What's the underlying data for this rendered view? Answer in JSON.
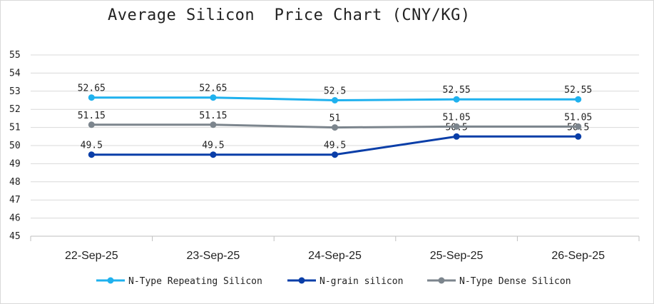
{
  "chart_data": {
    "type": "line",
    "title": "Average Silicon  Price Chart (CNY/KG)",
    "categories": [
      "22-Sep-25",
      "23-Sep-25",
      "24-Sep-25",
      "25-Sep-25",
      "26-Sep-25"
    ],
    "ylim": [
      45,
      55
    ],
    "yticks": [
      45,
      46,
      47,
      48,
      49,
      50,
      51,
      52,
      53,
      54,
      55
    ],
    "grid": true,
    "legend_position": "bottom",
    "series": [
      {
        "name": "N-Type Repeating Silicon",
        "color": "#1fb1ee",
        "values": [
          52.65,
          52.65,
          52.5,
          52.55,
          52.55
        ],
        "labels": [
          "52.65",
          "52.65",
          "52.5",
          "52.55",
          "52.55"
        ]
      },
      {
        "name": "N-grain silicon",
        "color": "#0a3ea8",
        "values": [
          49.5,
          49.5,
          49.5,
          50.5,
          50.5
        ],
        "labels": [
          "49.5",
          "49.5",
          "49.5",
          "50.5",
          "50.5"
        ]
      },
      {
        "name": "N-Type Dense Silicon",
        "color": "#7c858d",
        "values": [
          51.15,
          51.15,
          51,
          51.05,
          51.05
        ],
        "labels": [
          "51.15",
          "51.15",
          "51",
          "51.05",
          "51.05"
        ]
      }
    ]
  }
}
